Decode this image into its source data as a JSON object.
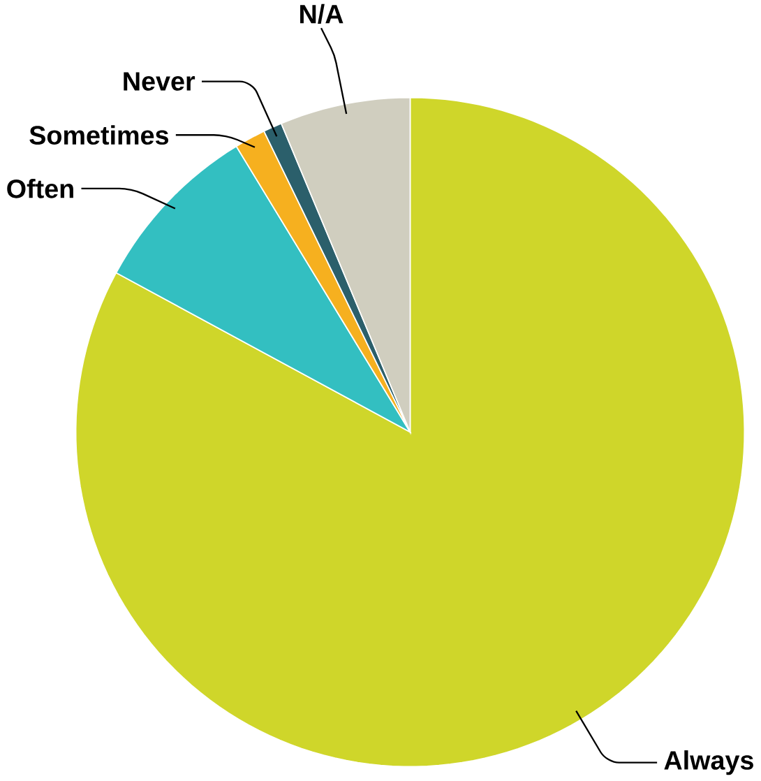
{
  "chart_data": {
    "type": "pie",
    "categories": [
      "Always",
      "Often",
      "Sometimes",
      "Never",
      "N/A"
    ],
    "values": [
      82.9,
      8.4,
      1.5,
      0.9,
      6.3
    ],
    "colors": [
      "#cfd62a",
      "#33bfc1",
      "#f6b01f",
      "#2b5f6b",
      "#d0cebf"
    ]
  }
}
